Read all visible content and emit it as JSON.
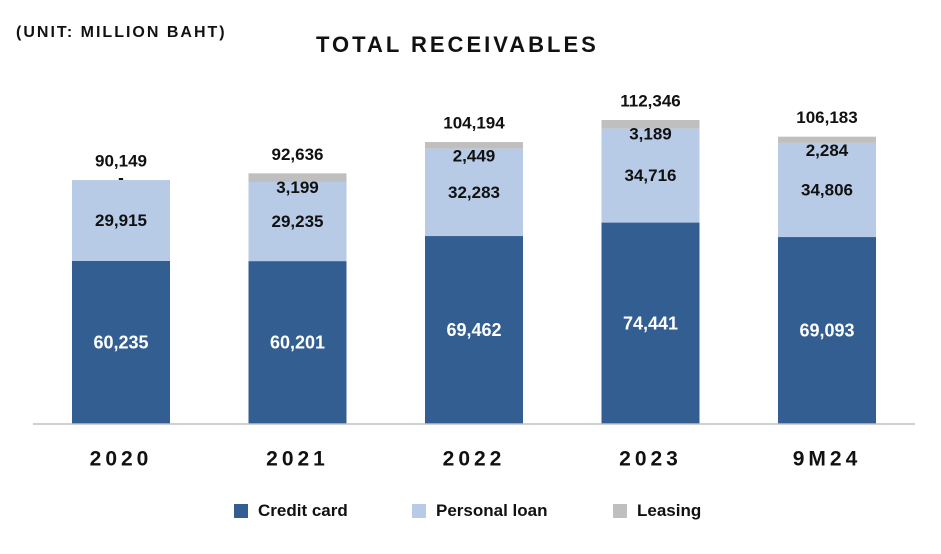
{
  "unit_label": "(UNIT: MILLION BAHT)",
  "chart_data": {
    "type": "bar",
    "stacked": true,
    "title": "TOTAL RECEIVABLES",
    "categories": [
      "2020",
      "2021",
      "2022",
      "2023",
      "9M24"
    ],
    "series": [
      {
        "name": "Credit card",
        "color": "#335e92",
        "values": [
          60235,
          60201,
          69462,
          74441,
          69093
        ],
        "labels": [
          "60,235",
          "60,201",
          "69,462",
          "74,441",
          "69,093"
        ],
        "label_color": "#ffffff"
      },
      {
        "name": "Personal loan",
        "color": "#b7cbe6",
        "values": [
          29915,
          29235,
          32283,
          34716,
          34806
        ],
        "labels": [
          "29,915",
          "29,235",
          "32,283",
          "34,716",
          "34,806"
        ],
        "label_color": "#111111"
      },
      {
        "name": "Leasing",
        "color": "#bfbfbf",
        "values": [
          0,
          3199,
          2449,
          3189,
          2284
        ],
        "labels": [
          "-",
          "3,199",
          "2,449",
          "3,189",
          "2,284"
        ],
        "label_color": "#111111"
      }
    ],
    "totals": [
      90149,
      92636,
      104194,
      112346,
      106183
    ],
    "total_labels": [
      "90,149",
      "92,636",
      "104,194",
      "112,346",
      "106,183"
    ],
    "ylim": [
      0,
      112346
    ],
    "grid": false,
    "legend_position": "bottom"
  }
}
